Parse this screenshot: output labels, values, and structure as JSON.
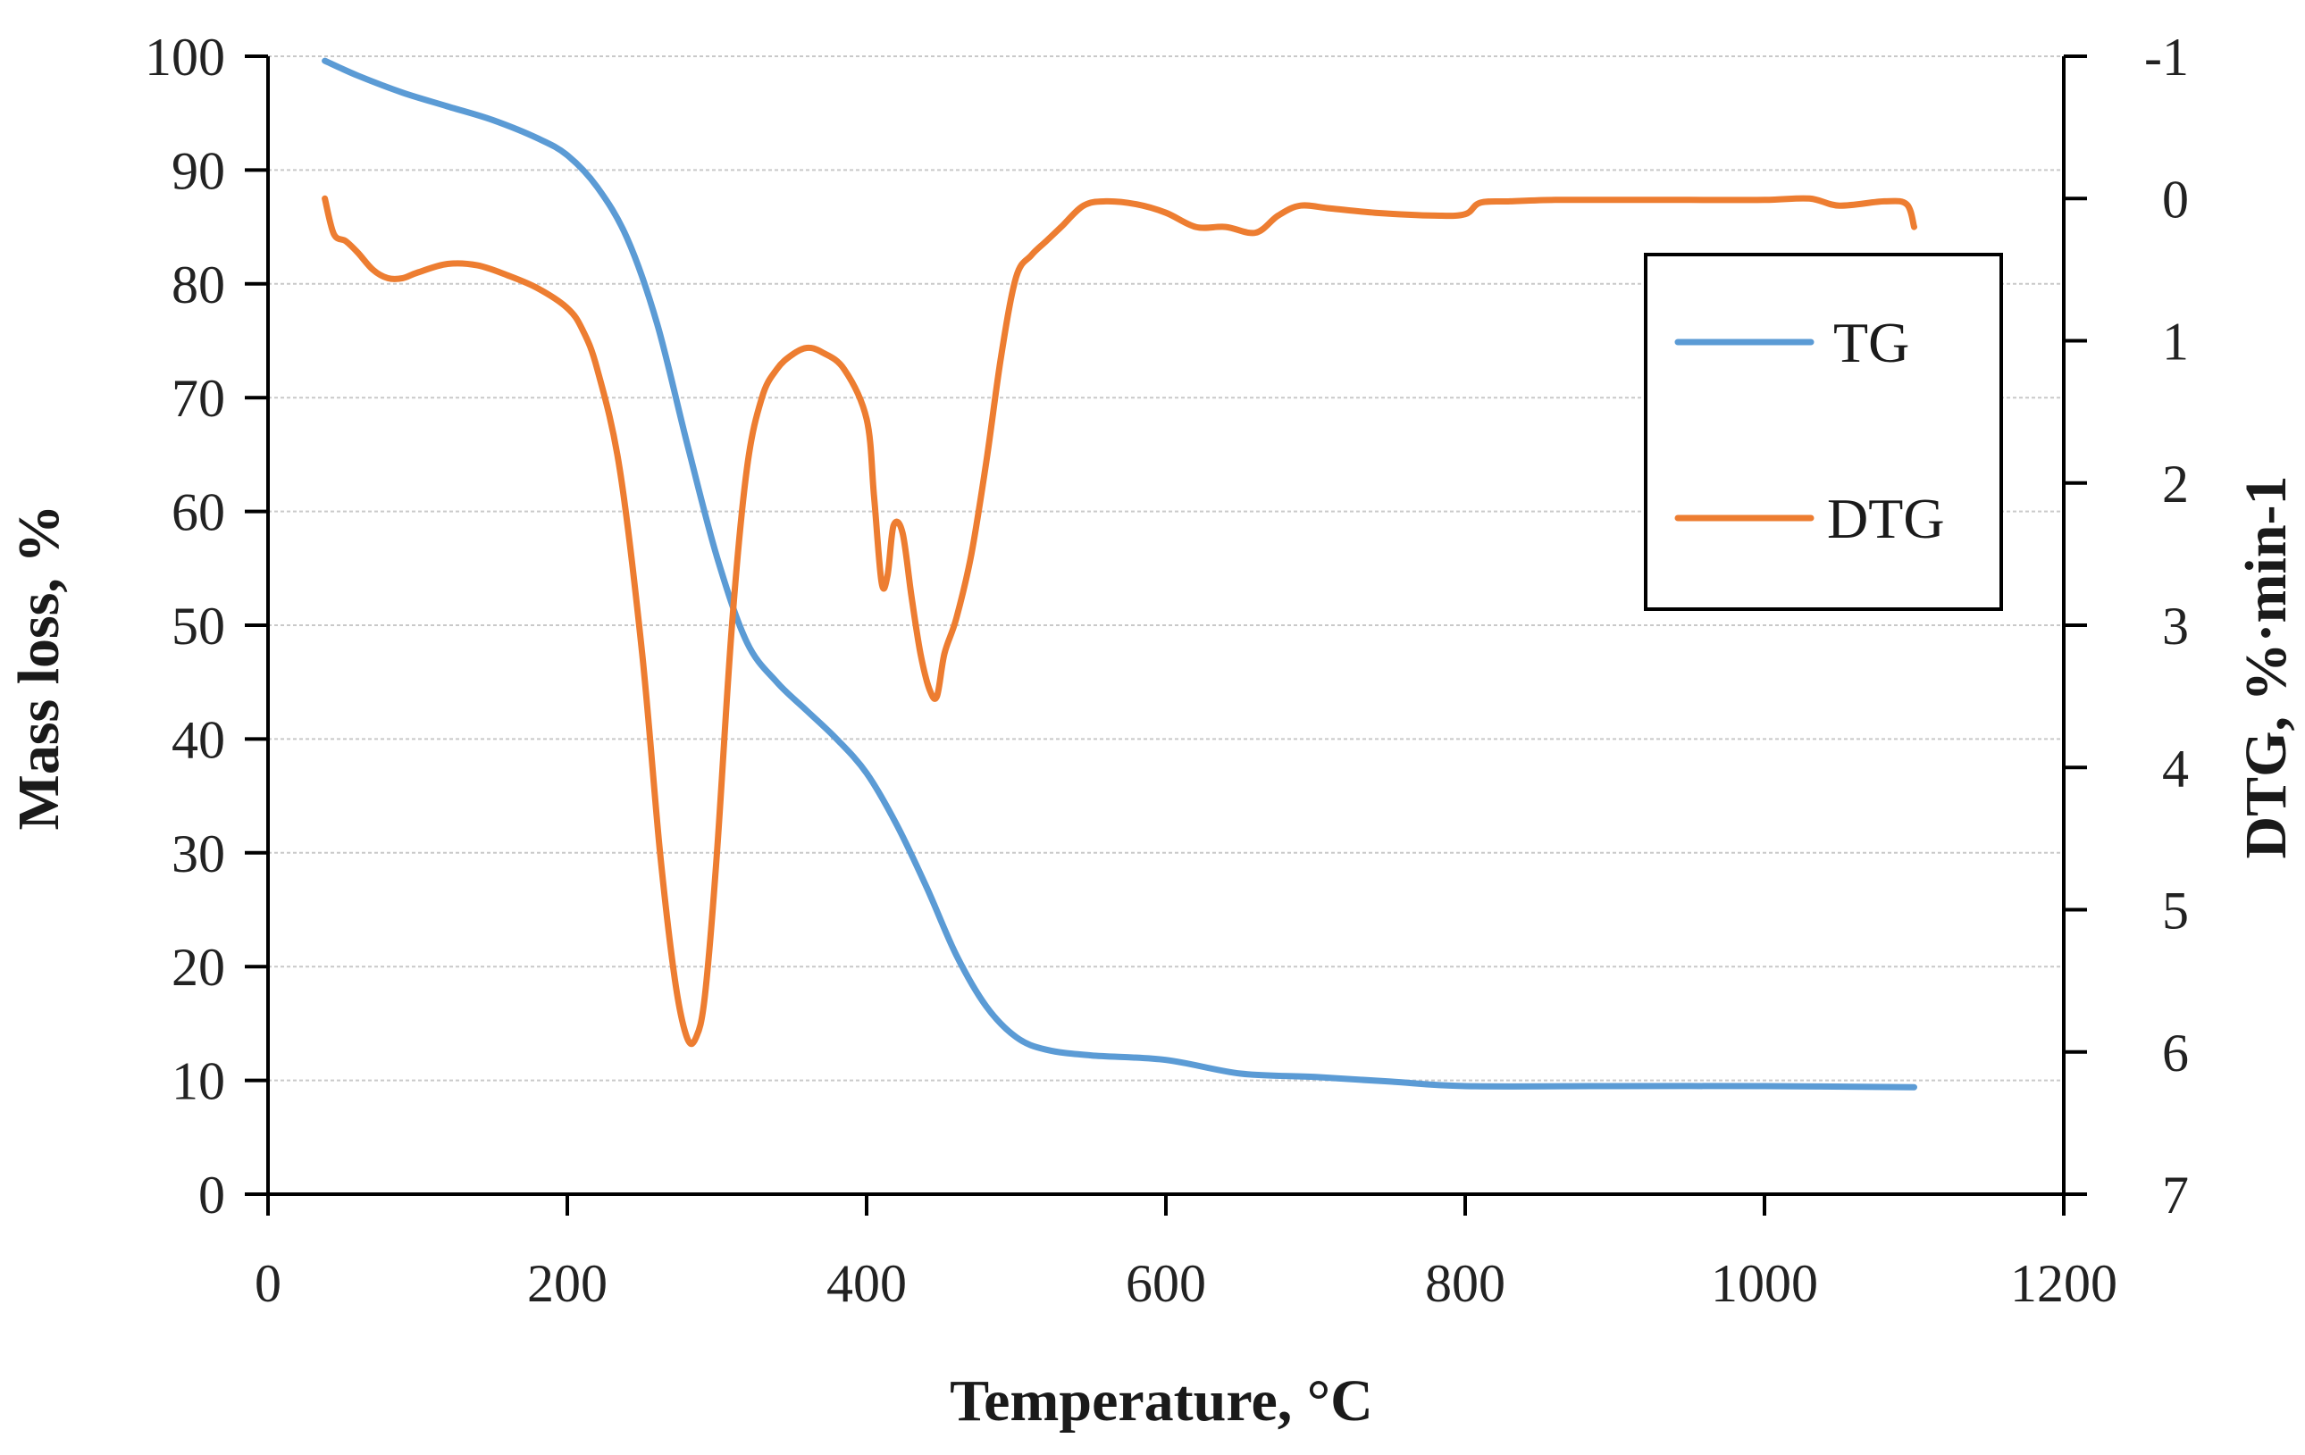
{
  "chart_data": {
    "type": "line",
    "title": "",
    "xlabel": "Temperature, °C",
    "ylabel": "Mass loss, %",
    "y2label": "DTG, %·min-1",
    "xlim": [
      0,
      1200
    ],
    "ylim": [
      0,
      100
    ],
    "y2lim": [
      -1,
      7
    ],
    "y2_inverted": true,
    "grid": true,
    "legend_position": "top-right",
    "x_ticks": [
      "0",
      "200",
      "400",
      "600",
      "800",
      "1000",
      "1200"
    ],
    "y_ticks": [
      "0",
      "10",
      "20",
      "30",
      "40",
      "50",
      "60",
      "70",
      "80",
      "90",
      "100"
    ],
    "y2_ticks": [
      "-1",
      "0",
      "1",
      "2",
      "3",
      "4",
      "5",
      "6",
      "7"
    ],
    "series": [
      {
        "name": "TG",
        "axis": "left",
        "color": "#5b9bd5",
        "x": [
          38,
          60,
          90,
          120,
          150,
          180,
          200,
          220,
          240,
          260,
          280,
          300,
          320,
          340,
          360,
          380,
          400,
          420,
          440,
          460,
          480,
          500,
          520,
          550,
          600,
          650,
          700,
          750,
          800,
          900,
          1000,
          1100
        ],
        "y": [
          99.6,
          98.3,
          96.8,
          95.6,
          94.4,
          92.8,
          91.3,
          88.5,
          84.0,
          76.5,
          66.0,
          56.0,
          48.5,
          45.0,
          42.5,
          40.0,
          37.0,
          32.5,
          27.0,
          21.0,
          16.5,
          13.8,
          12.7,
          12.2,
          11.8,
          10.6,
          10.3,
          9.9,
          9.5,
          9.5,
          9.5,
          9.4
        ]
      },
      {
        "name": "DTG",
        "axis": "right",
        "color": "#ed7d31",
        "x": [
          38,
          44,
          52,
          60,
          70,
          80,
          90,
          100,
          120,
          140,
          160,
          180,
          200,
          210,
          220,
          235,
          250,
          262,
          272,
          280,
          286,
          292,
          300,
          310,
          320,
          330,
          340,
          350,
          360,
          370,
          385,
          400,
          405,
          410,
          414,
          418,
          424,
          430,
          436,
          442,
          447,
          452,
          460,
          470,
          480,
          490,
          500,
          510,
          520,
          530,
          545,
          560,
          580,
          600,
          620,
          640,
          660,
          675,
          690,
          710,
          740,
          780,
          800,
          810,
          830,
          860,
          900,
          950,
          1000,
          1030,
          1050,
          1080,
          1095,
          1100
        ],
        "y": [
          0.0,
          0.25,
          0.3,
          0.38,
          0.5,
          0.56,
          0.56,
          0.52,
          0.46,
          0.47,
          0.54,
          0.63,
          0.77,
          0.92,
          1.2,
          1.9,
          3.2,
          4.6,
          5.5,
          5.9,
          5.9,
          5.6,
          4.6,
          3.0,
          1.9,
          1.4,
          1.2,
          1.1,
          1.05,
          1.08,
          1.2,
          1.55,
          2.1,
          2.7,
          2.65,
          2.3,
          2.35,
          2.8,
          3.2,
          3.45,
          3.5,
          3.2,
          2.95,
          2.5,
          1.85,
          1.1,
          0.55,
          0.4,
          0.3,
          0.2,
          0.05,
          0.02,
          0.04,
          0.1,
          0.2,
          0.2,
          0.24,
          0.12,
          0.05,
          0.07,
          0.1,
          0.12,
          0.11,
          0.03,
          0.02,
          0.01,
          0.01,
          0.01,
          0.01,
          0.0,
          0.05,
          0.02,
          0.04,
          0.2
        ]
      }
    ]
  }
}
